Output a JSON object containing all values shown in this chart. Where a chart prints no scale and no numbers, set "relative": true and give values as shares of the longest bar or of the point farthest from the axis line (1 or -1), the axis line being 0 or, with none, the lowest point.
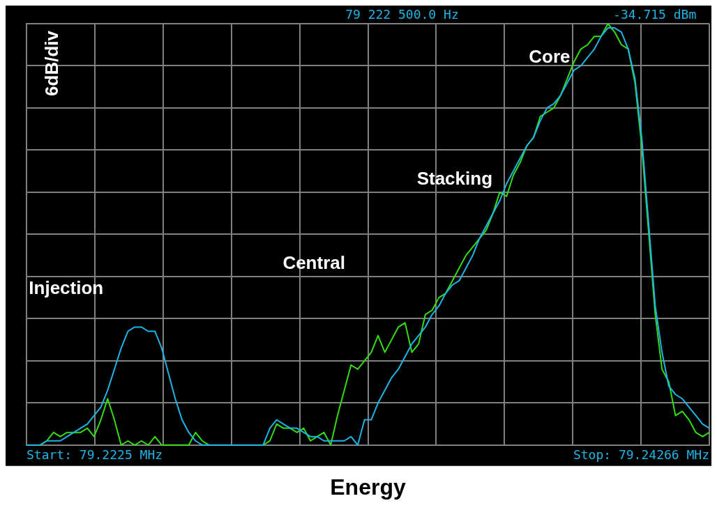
{
  "chart_data": {
    "type": "line",
    "xlabel": "Energy",
    "ylabel": "6dB/div",
    "relative": true,
    "grid": true,
    "legend": false,
    "marker": "none",
    "line_style": "solid",
    "categories": [
      null,
      null,
      null,
      null,
      null,
      null,
      null,
      null,
      null,
      null,
      null,
      null,
      null,
      null,
      null,
      null,
      null,
      null,
      null,
      null,
      null,
      null,
      null,
      null,
      null,
      null,
      null,
      null,
      null,
      null,
      null,
      null,
      null,
      null,
      null,
      null,
      null,
      null,
      null,
      null,
      null,
      null,
      null,
      null,
      null,
      null,
      null,
      null,
      null,
      null,
      null,
      null,
      null,
      null,
      null,
      null,
      null,
      null,
      null,
      null,
      null,
      null,
      null,
      null,
      null,
      null,
      null,
      null,
      null,
      null,
      null,
      null,
      null,
      null,
      null,
      null,
      null,
      null,
      null,
      null,
      null,
      null,
      null,
      null,
      null,
      null,
      null,
      null,
      null,
      null,
      null,
      null,
      null,
      null,
      null,
      null,
      null,
      null,
      null,
      null,
      null,
      null
    ],
    "series": [
      {
        "color": "#1eb4e6",
        "values": [
          0,
          0,
          0,
          0.01,
          0.01,
          0.01,
          0.02,
          0.03,
          0.04,
          0.05,
          0.07,
          0.09,
          0.13,
          0.18,
          0.23,
          0.27,
          0.28,
          0.28,
          0.27,
          0.27,
          0.23,
          0.17,
          0.11,
          0.06,
          0.03,
          0.01,
          0,
          0,
          0,
          0,
          0,
          0,
          0,
          0,
          0,
          0,
          0.04,
          0.06,
          0.05,
          0.04,
          0.04,
          0.03,
          0.02,
          0.02,
          0.01,
          0.01,
          0.01,
          0.01,
          0.02,
          0,
          0.06,
          0.06,
          0.1,
          0.13,
          0.16,
          0.18,
          0.21,
          0.24,
          0.26,
          0.28,
          0.31,
          0.33,
          0.36,
          0.38,
          0.39,
          0.42,
          0.45,
          0.49,
          0.52,
          0.55,
          0.58,
          0.62,
          0.65,
          0.68,
          0.71,
          0.73,
          0.77,
          0.8,
          0.81,
          0.83,
          0.86,
          0.89,
          0.9,
          0.92,
          0.94,
          0.97,
          0.99,
          0.99,
          0.98,
          0.94,
          0.87,
          0.73,
          0.53,
          0.33,
          0.22,
          0.14,
          0.12,
          0.11,
          0.09,
          0.07,
          0.05,
          0.04
        ]
      },
      {
        "color": "#33dd11",
        "values": [
          null,
          null,
          0,
          0.01,
          0.03,
          0.02,
          0.03,
          0.03,
          0.03,
          0.04,
          0.02,
          0.06,
          0.11,
          0.06,
          0,
          0.01,
          0,
          0.01,
          0,
          0.02,
          0,
          0,
          0,
          0,
          0,
          0.03,
          0.01,
          0,
          null,
          null,
          null,
          null,
          null,
          null,
          null,
          0,
          0.01,
          0.05,
          0.04,
          0.04,
          0.03,
          0.04,
          0.01,
          0.02,
          0.03,
          0,
          0.07,
          0.13,
          0.19,
          0.18,
          0.2,
          0.22,
          0.26,
          0.22,
          0.25,
          0.28,
          0.29,
          0.22,
          0.24,
          0.31,
          0.32,
          0.35,
          0.36,
          0.39,
          0.42,
          0.45,
          0.47,
          0.49,
          0.51,
          0.55,
          0.6,
          0.59,
          0.64,
          0.67,
          0.71,
          0.73,
          0.78,
          0.79,
          0.8,
          0.83,
          0.87,
          0.91,
          0.94,
          0.95,
          0.97,
          0.97,
          1,
          0.98,
          0.95,
          0.94,
          0.86,
          0.71,
          0.51,
          0.31,
          0.18,
          0.15,
          0.07,
          0.08,
          0.06,
          0.03,
          0.02,
          0.03
        ]
      }
    ],
    "annotations": [
      "Injection",
      "Central",
      "Stacking",
      "Core",
      "79 222 500.0 Hz",
      "-34.715 dBm",
      "Start: 79.2225 MHz",
      "Stop: 79.24266 MHz"
    ]
  }
}
